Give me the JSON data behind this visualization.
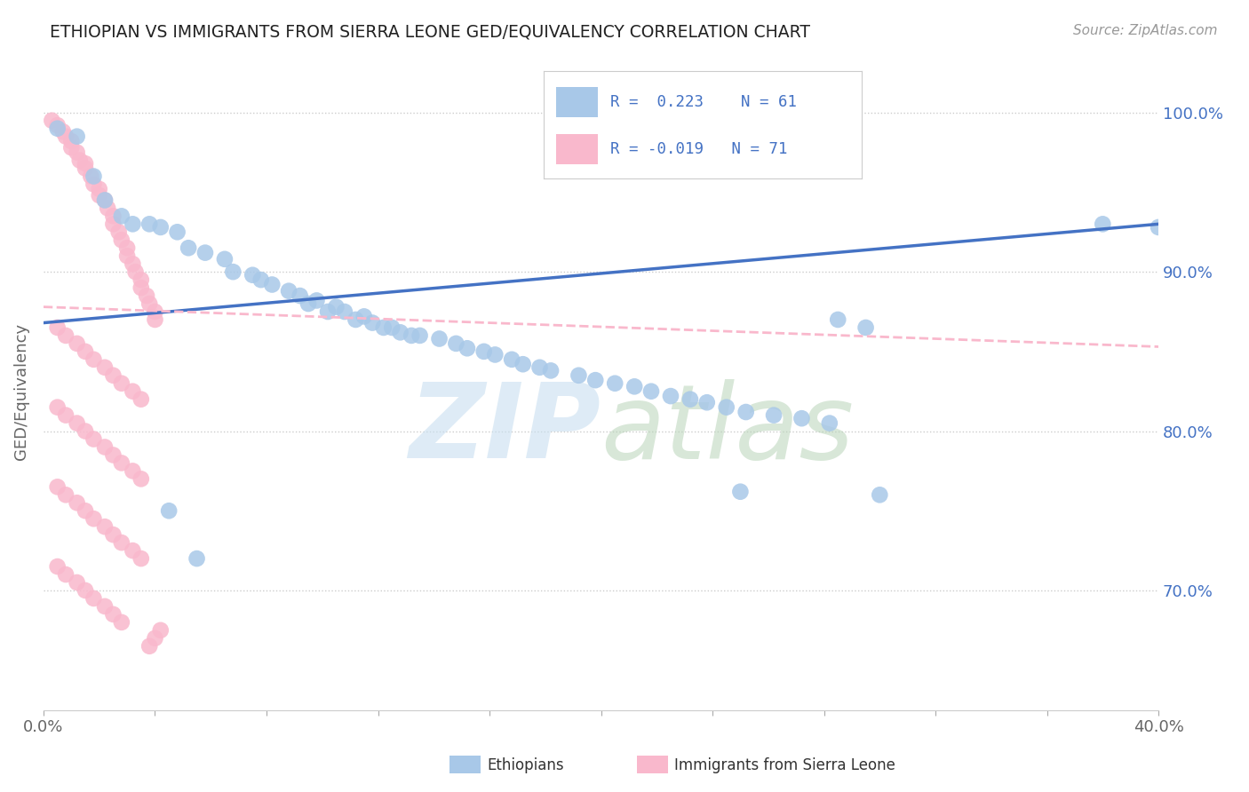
{
  "title": "ETHIOPIAN VS IMMIGRANTS FROM SIERRA LEONE GED/EQUIVALENCY CORRELATION CHART",
  "source": "Source: ZipAtlas.com",
  "ylabel": "GED/Equivalency",
  "xlim": [
    0.0,
    0.4
  ],
  "ylim": [
    0.625,
    1.025
  ],
  "xtick_positions": [
    0.0,
    0.04,
    0.08,
    0.12,
    0.16,
    0.2,
    0.24,
    0.28,
    0.32,
    0.36,
    0.4
  ],
  "xtick_labels": [
    "0.0%",
    "",
    "",
    "",
    "",
    "",
    "",
    "",
    "",
    "",
    "40.0%"
  ],
  "yticks": [
    0.7,
    0.8,
    0.9,
    1.0
  ],
  "ytick_labels": [
    "70.0%",
    "80.0%",
    "90.0%",
    "100.0%"
  ],
  "R_blue": 0.223,
  "N_blue": 61,
  "R_pink": -0.019,
  "N_pink": 71,
  "blue_color": "#a8c8e8",
  "pink_color": "#f9b8cc",
  "blue_line_color": "#4472c4",
  "pink_line_color": "#f9b8cc",
  "legend_label_blue": "Ethiopians",
  "legend_label_pink": "Immigrants from Sierra Leone",
  "blue_trend_x": [
    0.0,
    0.4
  ],
  "blue_trend_y": [
    0.868,
    0.93
  ],
  "pink_trend_x": [
    0.0,
    0.4
  ],
  "pink_trend_y": [
    0.878,
    0.853
  ],
  "blue_x": [
    0.005,
    0.012,
    0.018,
    0.022,
    0.028,
    0.032,
    0.038,
    0.042,
    0.048,
    0.052,
    0.058,
    0.065,
    0.068,
    0.075,
    0.078,
    0.082,
    0.088,
    0.092,
    0.098,
    0.105,
    0.108,
    0.115,
    0.118,
    0.125,
    0.128,
    0.135,
    0.142,
    0.148,
    0.152,
    0.158,
    0.162,
    0.168,
    0.172,
    0.178,
    0.182,
    0.192,
    0.198,
    0.205,
    0.212,
    0.218,
    0.225,
    0.232,
    0.238,
    0.245,
    0.252,
    0.262,
    0.272,
    0.282,
    0.095,
    0.102,
    0.112,
    0.122,
    0.132,
    0.285,
    0.295,
    0.045,
    0.055,
    0.38,
    0.4,
    0.3,
    0.25
  ],
  "blue_y": [
    0.99,
    0.985,
    0.96,
    0.945,
    0.935,
    0.93,
    0.93,
    0.928,
    0.925,
    0.915,
    0.912,
    0.908,
    0.9,
    0.898,
    0.895,
    0.892,
    0.888,
    0.885,
    0.882,
    0.878,
    0.875,
    0.872,
    0.868,
    0.865,
    0.862,
    0.86,
    0.858,
    0.855,
    0.852,
    0.85,
    0.848,
    0.845,
    0.842,
    0.84,
    0.838,
    0.835,
    0.832,
    0.83,
    0.828,
    0.825,
    0.822,
    0.82,
    0.818,
    0.815,
    0.812,
    0.81,
    0.808,
    0.805,
    0.88,
    0.875,
    0.87,
    0.865,
    0.86,
    0.87,
    0.865,
    0.75,
    0.72,
    0.93,
    0.928,
    0.76,
    0.762
  ],
  "pink_x": [
    0.003,
    0.005,
    0.007,
    0.008,
    0.01,
    0.01,
    0.012,
    0.013,
    0.015,
    0.015,
    0.017,
    0.018,
    0.02,
    0.02,
    0.022,
    0.023,
    0.025,
    0.025,
    0.027,
    0.028,
    0.03,
    0.03,
    0.032,
    0.033,
    0.035,
    0.035,
    0.037,
    0.038,
    0.04,
    0.04,
    0.005,
    0.008,
    0.012,
    0.015,
    0.018,
    0.022,
    0.025,
    0.028,
    0.032,
    0.035,
    0.005,
    0.008,
    0.012,
    0.015,
    0.018,
    0.022,
    0.025,
    0.028,
    0.032,
    0.035,
    0.005,
    0.008,
    0.012,
    0.015,
    0.018,
    0.022,
    0.025,
    0.028,
    0.032,
    0.035,
    0.005,
    0.008,
    0.012,
    0.015,
    0.018,
    0.022,
    0.025,
    0.028,
    0.04,
    0.038,
    0.042
  ],
  "pink_y": [
    0.995,
    0.992,
    0.988,
    0.985,
    0.982,
    0.978,
    0.975,
    0.97,
    0.968,
    0.965,
    0.96,
    0.955,
    0.952,
    0.948,
    0.945,
    0.94,
    0.935,
    0.93,
    0.925,
    0.92,
    0.915,
    0.91,
    0.905,
    0.9,
    0.895,
    0.89,
    0.885,
    0.88,
    0.875,
    0.87,
    0.865,
    0.86,
    0.855,
    0.85,
    0.845,
    0.84,
    0.835,
    0.83,
    0.825,
    0.82,
    0.815,
    0.81,
    0.805,
    0.8,
    0.795,
    0.79,
    0.785,
    0.78,
    0.775,
    0.77,
    0.765,
    0.76,
    0.755,
    0.75,
    0.745,
    0.74,
    0.735,
    0.73,
    0.725,
    0.72,
    0.715,
    0.71,
    0.705,
    0.7,
    0.695,
    0.69,
    0.685,
    0.68,
    0.67,
    0.665,
    0.675
  ]
}
